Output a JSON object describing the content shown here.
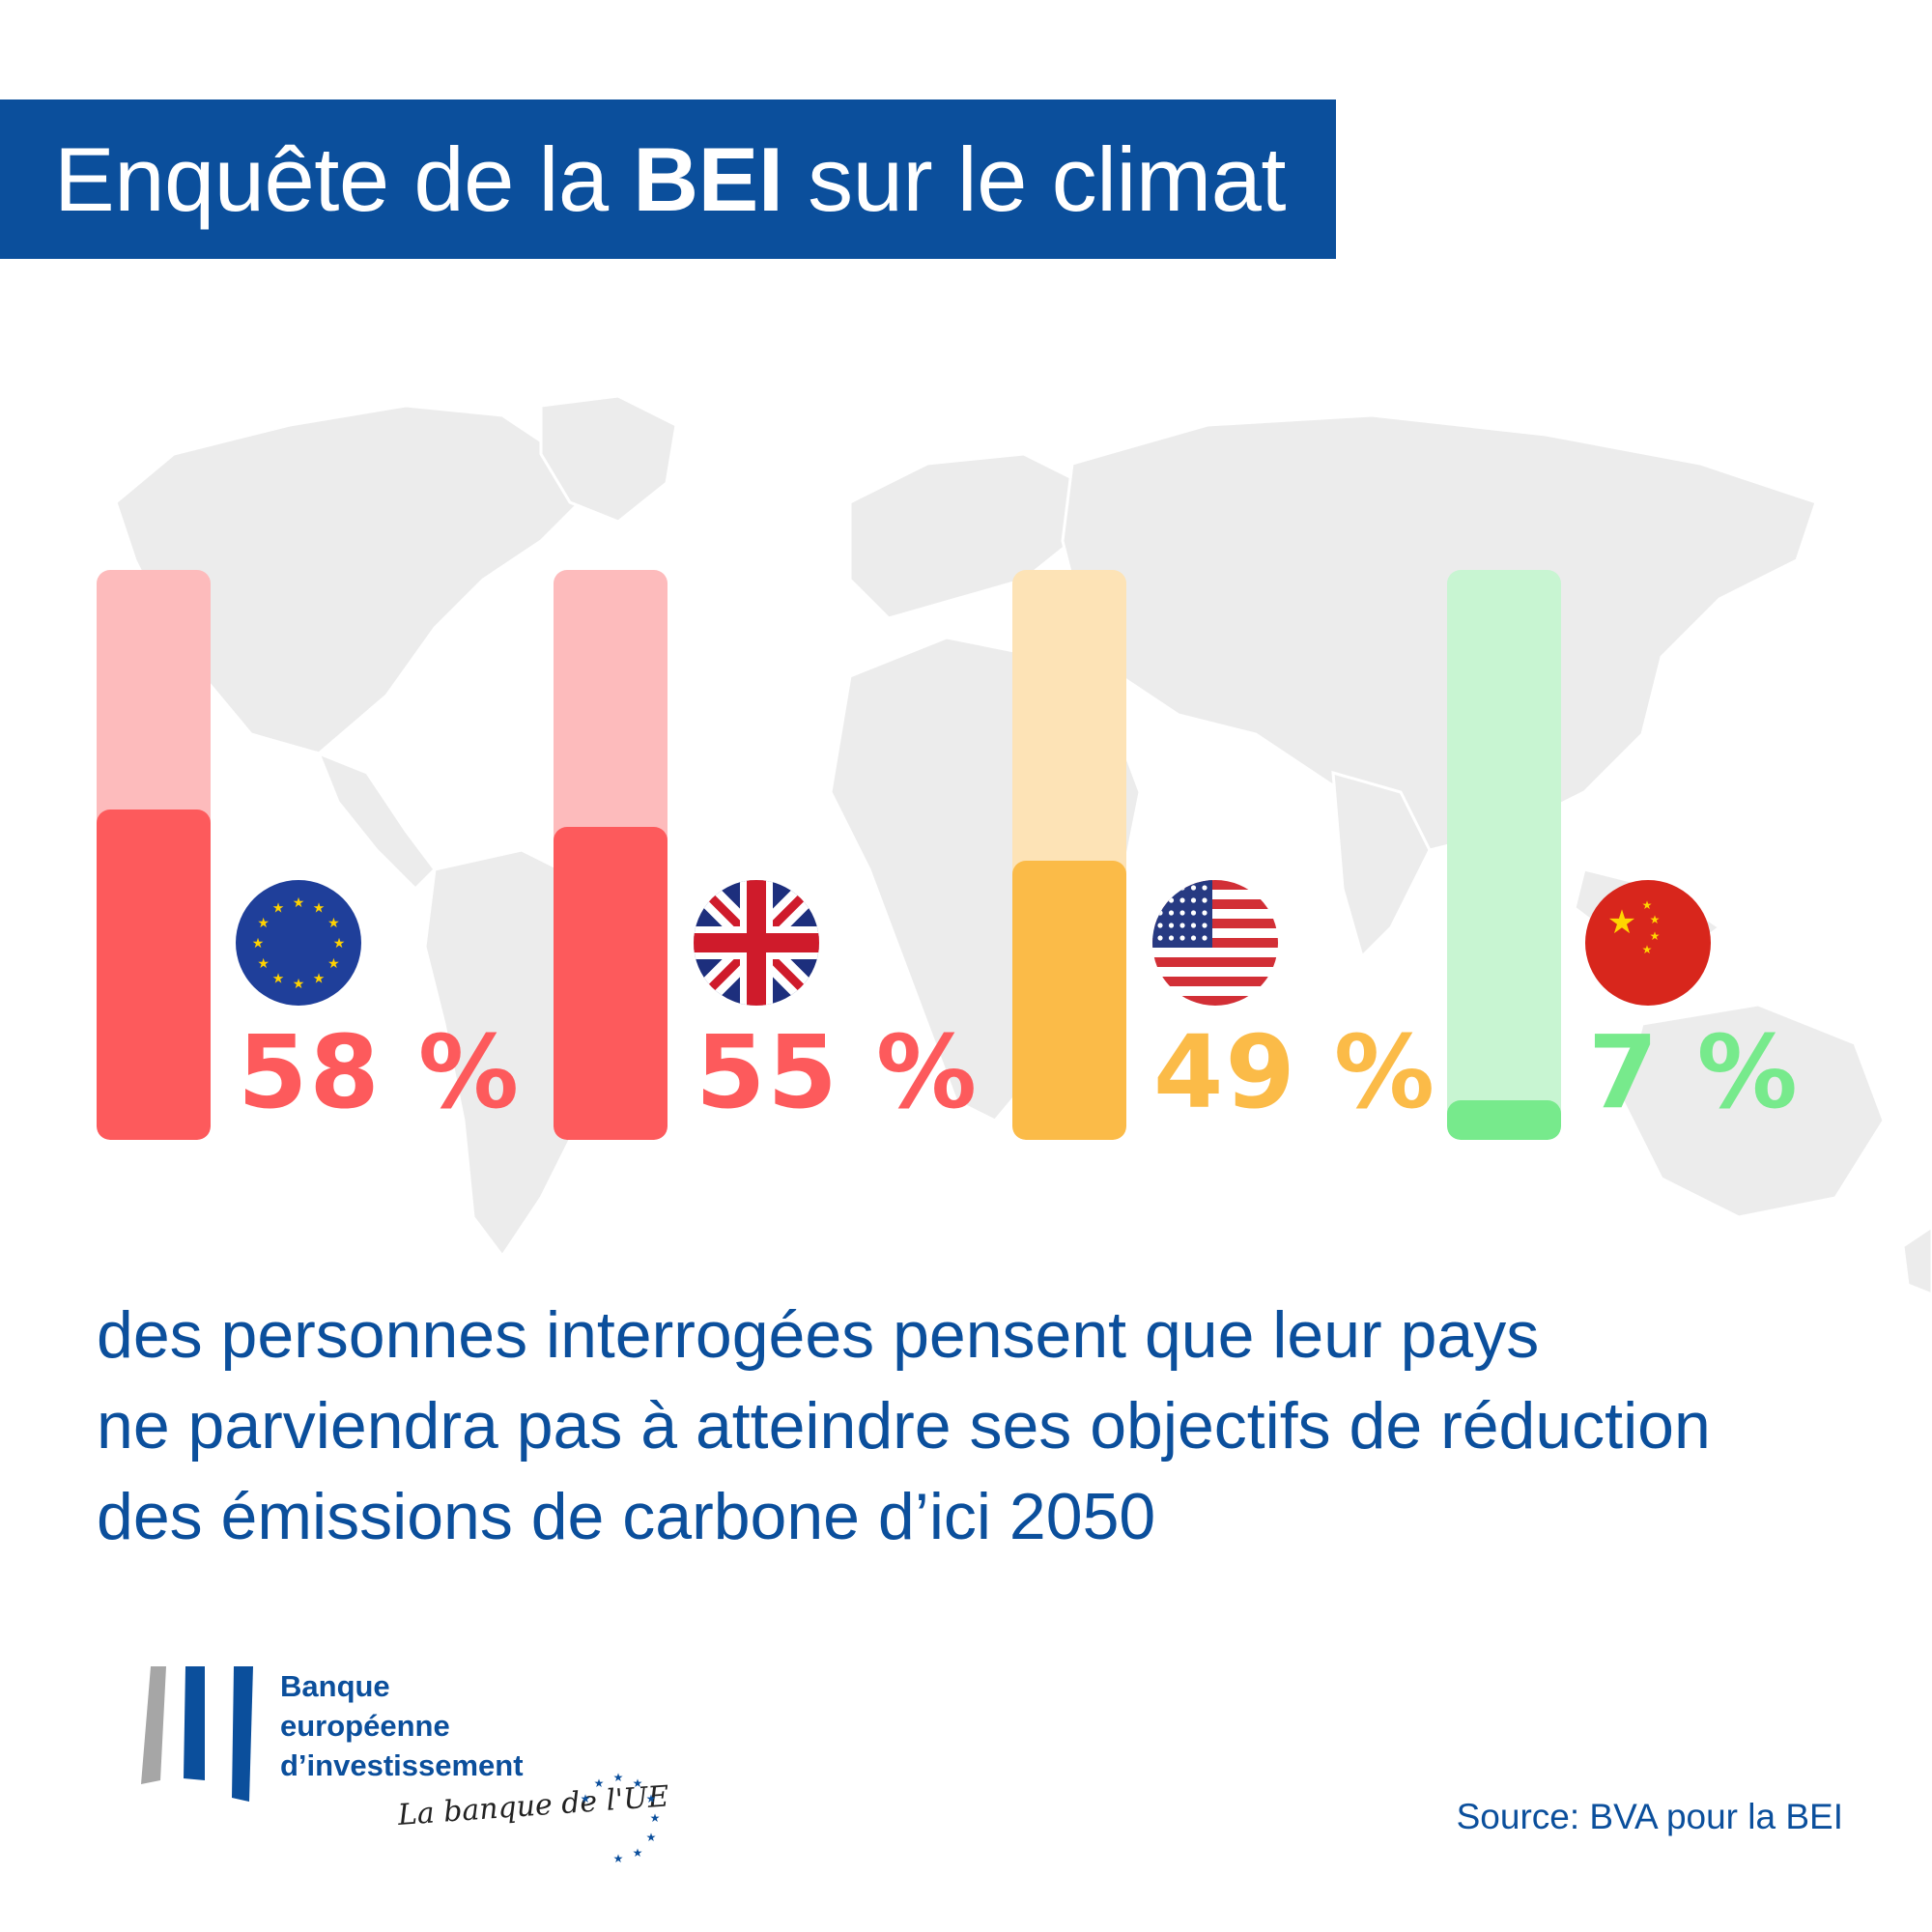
{
  "title": {
    "prefix": "Enquête de la ",
    "bold": "BEI",
    "suffix": " sur le climat"
  },
  "chart_data": {
    "type": "bar",
    "categories": [
      "EU",
      "UK",
      "US",
      "China"
    ],
    "values": [
      58,
      55,
      49,
      7
    ],
    "value_labels": [
      "58 %",
      "55 %",
      "49 %",
      "7 %"
    ],
    "ylim": [
      0,
      100
    ],
    "colors": {
      "fill": [
        "#fd5a5c",
        "#fd5a5c",
        "#fbbb48",
        "#77ea8c"
      ],
      "track": [
        "#fdbbbc",
        "#fdbbbc",
        "#fde3b6",
        "#c8f5d2"
      ]
    },
    "flags": [
      "eu-flag-icon",
      "uk-flag-icon",
      "us-flag-icon",
      "china-flag-icon"
    ]
  },
  "caption": [
    "des personnes interrogées pensent que leur pays",
    "ne parviendra pas à atteindre ses objectifs de réduction",
    "des émissions de carbone d’ici 2050"
  ],
  "logo": {
    "name_lines": [
      "Banque",
      "européenne",
      "d’investissement"
    ],
    "tagline": "La banque de l'UE"
  },
  "source": "Source: BVA pour la BEI",
  "colors": {
    "brand_blue": "#0b4f9c",
    "map_gray": "#ececec"
  }
}
